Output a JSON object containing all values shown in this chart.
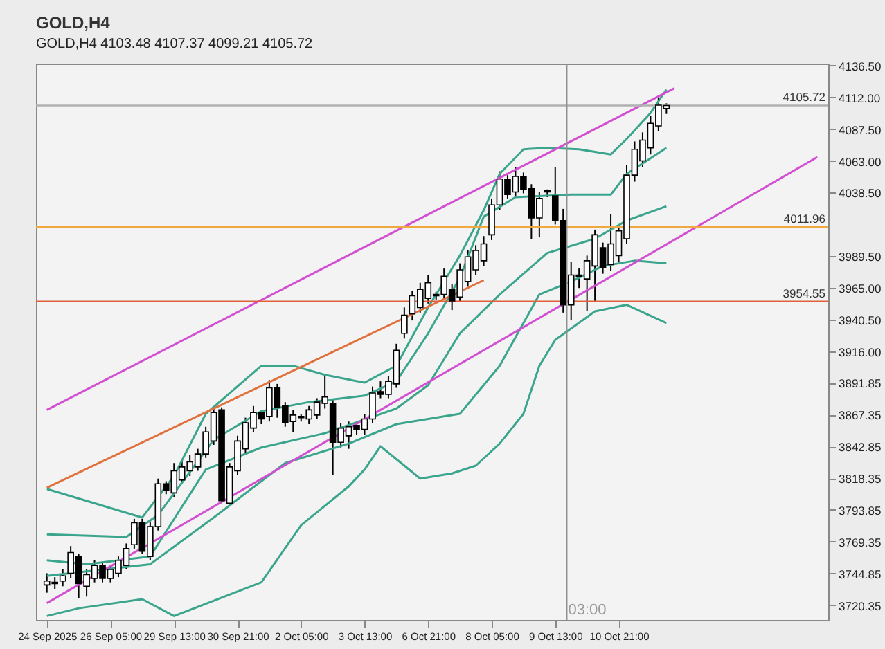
{
  "chart_data": {
    "type": "candlestick",
    "title": "GOLD,H4",
    "subtitle": "GOLD,H4  4103.48 4107.37 4099.21 4105.72",
    "categories": [
      "24 Sep 2025",
      null,
      null,
      null,
      null,
      null,
      null,
      null,
      "26 Sep 05:00",
      null,
      null,
      null,
      null,
      null,
      null,
      null,
      "29 Sep 13:00",
      null,
      null,
      null,
      null,
      null,
      null,
      null,
      "30 Sep 21:00",
      null,
      null,
      null,
      null,
      null,
      null,
      null,
      "2 Oct 05:00",
      null,
      null,
      null,
      null,
      null,
      null,
      null,
      "3 Oct 13:00",
      null,
      null,
      null,
      null,
      null,
      null,
      null,
      "6 Oct 21:00",
      null,
      null,
      null,
      null,
      null,
      null,
      null,
      "8 Oct 05:00",
      null,
      null,
      null,
      null,
      null,
      null,
      null,
      "9 Oct 13:00",
      null,
      null,
      null,
      null,
      null,
      null,
      null,
      "10 Oct 21:00",
      null,
      null,
      null,
      null,
      null,
      null,
      null,
      null,
      null,
      null,
      null,
      null,
      null,
      null,
      null,
      null,
      null,
      null,
      null,
      null,
      null,
      null,
      null,
      null,
      null
    ],
    "ohlc": [
      [
        3736,
        3745,
        3730,
        3739
      ],
      [
        3738,
        3742,
        3733,
        3737
      ],
      [
        3739,
        3748,
        3735,
        3743
      ],
      [
        3745,
        3766,
        3741,
        3761
      ],
      [
        3758,
        3760,
        3726,
        3737
      ],
      [
        3735,
        3748,
        3727,
        3744
      ],
      [
        3741,
        3755,
        3738,
        3751
      ],
      [
        3751,
        3753,
        3738,
        3741
      ],
      [
        3741,
        3751,
        3738,
        3748
      ],
      [
        3745,
        3758,
        3742,
        3755
      ],
      [
        3751,
        3768,
        3748,
        3764
      ],
      [
        3767,
        3787,
        3764,
        3784
      ],
      [
        3784,
        3787,
        3760,
        3762
      ],
      [
        3758,
        3785,
        3755,
        3781
      ],
      [
        3781,
        3818,
        3778,
        3814
      ],
      [
        3814,
        3816,
        3806,
        3809
      ],
      [
        3807,
        3830,
        3804,
        3824
      ],
      [
        3817,
        3832,
        3814,
        3827
      ],
      [
        3824,
        3836,
        3820,
        3831
      ],
      [
        3827,
        3841,
        3824,
        3837
      ],
      [
        3837,
        3858,
        3834,
        3854
      ],
      [
        3847,
        3872,
        3844,
        3869
      ],
      [
        3871,
        3873,
        3799,
        3801
      ],
      [
        3799,
        3830,
        3797,
        3827
      ],
      [
        3824,
        3851,
        3821,
        3847
      ],
      [
        3841,
        3865,
        3838,
        3861
      ],
      [
        3857,
        3874,
        3854,
        3869
      ],
      [
        3869,
        3871,
        3860,
        3864
      ],
      [
        3866,
        3894,
        3862,
        3888
      ],
      [
        3888,
        3891,
        3865,
        3873
      ],
      [
        3874,
        3877,
        3858,
        3861
      ],
      [
        3862,
        3871,
        3854,
        3867
      ],
      [
        3866,
        3868,
        3862,
        3865
      ],
      [
        3864,
        3874,
        3860,
        3871
      ],
      [
        3867,
        3880,
        3864,
        3877
      ],
      [
        3876,
        3897,
        3872,
        3881
      ],
      [
        3876,
        3879,
        3821,
        3846
      ],
      [
        3846,
        3861,
        3842,
        3857
      ],
      [
        3851,
        3862,
        3841,
        3858
      ],
      [
        3859,
        3861,
        3852,
        3856
      ],
      [
        3856,
        3868,
        3852,
        3864
      ],
      [
        3864,
        3889,
        3861,
        3884
      ],
      [
        3885,
        3893,
        3880,
        3883
      ],
      [
        3883,
        3897,
        3880,
        3893
      ],
      [
        3891,
        3922,
        3888,
        3917
      ],
      [
        3930,
        3950,
        3926,
        3944
      ],
      [
        3945,
        3963,
        3940,
        3959
      ],
      [
        3950,
        3969,
        3946,
        3964
      ],
      [
        3957,
        3975,
        3953,
        3969
      ],
      [
        3960,
        3962,
        3956,
        3959
      ],
      [
        3960,
        3980,
        3956,
        3974
      ],
      [
        3964,
        3968,
        3948,
        3955
      ],
      [
        3958,
        3984,
        3954,
        3979
      ],
      [
        3970,
        3994,
        3966,
        3989
      ],
      [
        3979,
        3998,
        3975,
        3994
      ],
      [
        3986,
        4005,
        3982,
        3999
      ],
      [
        4006,
        4034,
        4002,
        4029
      ],
      [
        4029,
        4055,
        4025,
        4049
      ],
      [
        4049,
        4052,
        4034,
        4037
      ],
      [
        4039,
        4058,
        4035,
        4051
      ],
      [
        4051,
        4054,
        4038,
        4041
      ],
      [
        4042,
        4045,
        4003,
        4019
      ],
      [
        4019,
        4039,
        4004,
        4034
      ],
      [
        4040,
        4041,
        4035,
        4039
      ],
      [
        4036,
        4058,
        4014,
        4017
      ],
      [
        4017,
        4026,
        3946,
        3952
      ],
      [
        3952,
        3985,
        3940,
        3975
      ],
      [
        3975,
        3980,
        3965,
        3974
      ],
      [
        3972,
        3990,
        3947,
        3986
      ],
      [
        3982,
        4010,
        3955,
        4006
      ],
      [
        3996,
        4000,
        3976,
        3981
      ],
      [
        3983,
        4022,
        3978,
        3999
      ],
      [
        3990,
        4013,
        3985,
        4009
      ],
      [
        4003,
        4060,
        3999,
        4052
      ],
      [
        4052,
        4078,
        4047,
        4072
      ],
      [
        4063,
        4085,
        4058,
        4079
      ],
      [
        4073,
        4098,
        4068,
        4092
      ],
      [
        4090,
        4112,
        4086,
        4106
      ],
      [
        4103.48,
        4107.37,
        4099.21,
        4105.72
      ],
      null,
      null,
      null,
      null,
      null,
      null,
      null,
      null,
      null,
      null,
      null,
      null,
      null,
      null,
      null,
      null,
      null,
      null,
      null
    ],
    "series": [
      {
        "type": "line",
        "color": "#3aa58c",
        "values": [
          3810,
          null,
          null,
          null,
          null,
          null,
          null,
          null,
          null,
          null,
          null,
          null,
          3788,
          null,
          null,
          null,
          3820,
          null,
          null,
          null,
          3868,
          null,
          null,
          null,
          null,
          null,
          null,
          3905,
          null,
          null,
          null,
          3905,
          null,
          null,
          null,
          3898,
          null,
          null,
          null,
          null,
          3892,
          null,
          null,
          null,
          3905,
          null,
          null,
          null,
          3950,
          null,
          null,
          null,
          3990,
          null,
          null,
          4025,
          null,
          4053,
          null,
          null,
          4072,
          null,
          null,
          4073,
          null,
          null,
          null,
          4072,
          null,
          null,
          null,
          4068,
          null,
          4080,
          null,
          null,
          4100,
          null,
          4118,
          null,
          null,
          null,
          null,
          null,
          null,
          null,
          null,
          null,
          null,
          null,
          null,
          null,
          null,
          null,
          null,
          null,
          null,
          null
        ]
      },
      {
        "type": "line",
        "color": "#3aa58c",
        "values": [
          3775,
          null,
          null,
          null,
          null,
          null,
          null,
          null,
          null,
          null,
          3773,
          null,
          null,
          null,
          3790,
          null,
          null,
          null,
          null,
          null,
          null,
          3848,
          null,
          null,
          null,
          null,
          null,
          3870,
          null,
          null,
          null,
          null,
          null,
          3877,
          null,
          null,
          null,
          null,
          null,
          null,
          3882,
          null,
          null,
          null,
          3893,
          null,
          null,
          null,
          3930,
          null,
          null,
          null,
          3973,
          null,
          null,
          4020,
          null,
          null,
          null,
          4035,
          null,
          null,
          null,
          null,
          null,
          null,
          4037,
          null,
          null,
          null,
          null,
          4037,
          null,
          4053,
          null,
          null,
          null,
          null,
          4073,
          null,
          null,
          null,
          null,
          null,
          null,
          null,
          null,
          null,
          null,
          null,
          null,
          null,
          null,
          null,
          null,
          null,
          null,
          null
        ]
      },
      {
        "type": "line",
        "color": "#3aa58c",
        "values": [
          3755,
          null,
          null,
          null,
          null,
          3752,
          null,
          null,
          null,
          null,
          null,
          null,
          null,
          3758,
          null,
          null,
          null,
          null,
          null,
          null,
          3825,
          null,
          null,
          null,
          null,
          null,
          null,
          3842,
          null,
          null,
          null,
          null,
          null,
          null,
          null,
          3853,
          null,
          null,
          null,
          null,
          null,
          null,
          null,
          null,
          3872,
          null,
          null,
          null,
          3890,
          null,
          null,
          null,
          3930,
          null,
          null,
          null,
          null,
          3960,
          null,
          null,
          null,
          null,
          null,
          3992,
          null,
          null,
          null,
          null,
          null,
          4003,
          null,
          null,
          null,
          4017,
          null,
          null,
          null,
          null,
          4028,
          null,
          null,
          null,
          null,
          null,
          null,
          null,
          null,
          null,
          null,
          null,
          null,
          null,
          null,
          null,
          null,
          null,
          null,
          null
        ]
      },
      {
        "type": "line",
        "color": "#3aa58c",
        "values": [
          3743,
          null,
          null,
          null,
          null,
          null,
          null,
          null,
          null,
          null,
          null,
          null,
          null,
          3752,
          null,
          null,
          null,
          null,
          null,
          null,
          null,
          3788,
          null,
          null,
          null,
          null,
          null,
          null,
          null,
          null,
          3830,
          null,
          null,
          null,
          null,
          null,
          null,
          null,
          3845,
          null,
          null,
          null,
          null,
          null,
          3860,
          null,
          null,
          null,
          null,
          null,
          null,
          null,
          3868,
          null,
          null,
          null,
          null,
          3905,
          null,
          null,
          null,
          null,
          3960,
          null,
          null,
          null,
          3970,
          null,
          null,
          null,
          3982,
          null,
          null,
          null,
          3986,
          null,
          null,
          null,
          3984,
          null,
          null,
          null,
          null,
          null,
          null,
          null,
          null,
          null,
          null,
          null,
          null,
          null,
          null,
          null,
          null,
          null,
          null,
          null
        ]
      },
      {
        "type": "line",
        "color": "#3aa58c",
        "values": [
          3712,
          null,
          null,
          null,
          3718,
          null,
          null,
          null,
          null,
          null,
          null,
          null,
          3725,
          null,
          null,
          null,
          3712,
          null,
          null,
          null,
          null,
          null,
          null,
          null,
          null,
          null,
          null,
          3738,
          null,
          null,
          null,
          null,
          3782,
          null,
          null,
          null,
          null,
          null,
          3812,
          null,
          3825,
          null,
          3843,
          null,
          null,
          3828,
          null,
          3818,
          null,
          null,
          null,
          3822,
          null,
          null,
          3828,
          null,
          null,
          3845,
          null,
          null,
          3868,
          null,
          3905,
          null,
          3925,
          null,
          null,
          null,
          null,
          3947,
          null,
          null,
          null,
          3952,
          null,
          null,
          null,
          null,
          3938,
          null,
          null,
          null,
          null,
          null,
          null,
          null,
          null,
          null,
          null,
          null,
          null,
          null,
          null,
          null,
          null,
          null,
          null,
          null
        ]
      },
      {
        "type": "line",
        "color": "#d24fd2",
        "values": [
          3871,
          null,
          null,
          null,
          null,
          null,
          null,
          null,
          null,
          null,
          null,
          null,
          null,
          null,
          null,
          null,
          null,
          null,
          null,
          null,
          null,
          null,
          null,
          null,
          null,
          null,
          null,
          null,
          null,
          null,
          null,
          null,
          null,
          null,
          null,
          null,
          null,
          null,
          null,
          null,
          null,
          null,
          null,
          null,
          null,
          null,
          null,
          null,
          null,
          null,
          null,
          null,
          null,
          null,
          null,
          null,
          null,
          null,
          null,
          null,
          null,
          null,
          null,
          null,
          null,
          null,
          null,
          null,
          null,
          null,
          null,
          null,
          null,
          null,
          null,
          null,
          null,
          null,
          null,
          4119,
          null,
          null,
          null,
          null,
          null,
          null,
          null,
          null,
          null,
          null,
          null,
          null,
          null,
          null,
          null,
          null,
          null,
          null
        ]
      },
      {
        "type": "line",
        "color": "#d24fd2",
        "values": [
          3722,
          null,
          null,
          null,
          null,
          null,
          null,
          null,
          null,
          null,
          null,
          null,
          null,
          null,
          null,
          null,
          null,
          null,
          null,
          null,
          null,
          null,
          null,
          null,
          null,
          null,
          null,
          null,
          null,
          null,
          null,
          null,
          null,
          null,
          null,
          null,
          null,
          null,
          null,
          null,
          null,
          null,
          null,
          null,
          null,
          null,
          null,
          null,
          null,
          null,
          null,
          null,
          null,
          null,
          null,
          null,
          null,
          null,
          null,
          null,
          null,
          null,
          null,
          null,
          null,
          null,
          null,
          null,
          null,
          null,
          null,
          null,
          null,
          null,
          null,
          null,
          null,
          null,
          null,
          null,
          null,
          null,
          null,
          null,
          null,
          null,
          null,
          null,
          null,
          null,
          null,
          null,
          null,
          null,
          null,
          null,
          null,
          4066
        ]
      },
      {
        "type": "line",
        "color": "#e0703c",
        "values": [
          3811,
          null,
          null,
          null,
          null,
          null,
          null,
          null,
          null,
          null,
          null,
          null,
          null,
          null,
          null,
          null,
          null,
          null,
          null,
          null,
          null,
          null,
          null,
          null,
          null,
          null,
          null,
          null,
          null,
          null,
          null,
          null,
          null,
          null,
          null,
          null,
          null,
          null,
          null,
          null,
          null,
          null,
          null,
          null,
          null,
          null,
          null,
          null,
          null,
          null,
          null,
          null,
          null,
          null,
          null,
          3971,
          null,
          null,
          null,
          null,
          null,
          null,
          null,
          null,
          null,
          null,
          null,
          null,
          null,
          null,
          null,
          null,
          null,
          null,
          null,
          null,
          null,
          null,
          null,
          null,
          null,
          null,
          null,
          null,
          null,
          null,
          null,
          null,
          null,
          null,
          null,
          null,
          null,
          null,
          null,
          null,
          null,
          null
        ]
      }
    ],
    "ylim": [
      3709,
      4138
    ],
    "yticks": [
      {
        "value": 4136.5,
        "label": "4136.50"
      },
      {
        "value": 4112,
        "label": "4112.00"
      },
      {
        "value": 4087.5,
        "label": "4087.50"
      },
      {
        "value": 4063,
        "label": "4063.00"
      },
      {
        "value": 4038.5,
        "label": "4038.50"
      },
      {
        "value": 3989.5,
        "label": "3989.50"
      },
      {
        "value": 3965,
        "label": "3965.00"
      },
      {
        "value": 3940.5,
        "label": "3940.50"
      },
      {
        "value": 3916,
        "label": "3916.00"
      },
      {
        "value": 3891.85,
        "label": "3891.85"
      },
      {
        "value": 3867.35,
        "label": "3867.35"
      },
      {
        "value": 3842.85,
        "label": "3842.85"
      },
      {
        "value": 3818.35,
        "label": "3818.35"
      },
      {
        "value": 3793.85,
        "label": "3793.85"
      },
      {
        "value": 3769.35,
        "label": "3769.35"
      },
      {
        "value": 3744.85,
        "label": "3744.85"
      },
      {
        "value": 3720.35,
        "label": "3720.35"
      }
    ],
    "ref_lines": [
      {
        "axis": "y",
        "value": 4011.96,
        "label": "4011.96",
        "color": "#f0a840"
      },
      {
        "axis": "y",
        "value": 3954.55,
        "label": "3954.55",
        "color": "#e0603a"
      },
      {
        "axis": "y",
        "value": 4105.72,
        "label": "4105.72",
        "color": "#b0b0b0"
      }
    ],
    "annotations": [
      "03:00"
    ],
    "grid": false
  }
}
